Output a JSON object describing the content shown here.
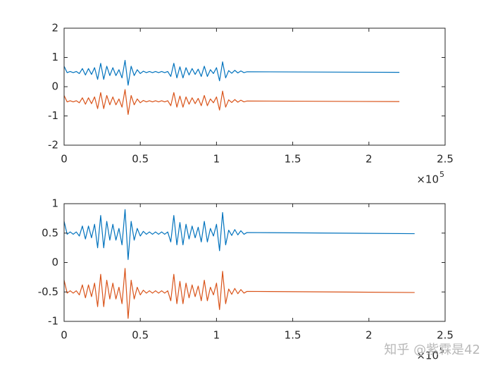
{
  "chart_data": [
    {
      "type": "line",
      "xlim": [
        0,
        2.5
      ],
      "ylim": [
        -2,
        2
      ],
      "xticks": [
        0,
        0.5,
        1,
        1.5,
        2,
        2.5
      ],
      "yticks": [
        -2,
        -1,
        0,
        1,
        2
      ],
      "x_scale_label": "×10",
      "x_scale_exponent": "5",
      "x": [
        0,
        0.02,
        0.04,
        0.06,
        0.08,
        0.1,
        0.12,
        0.14,
        0.16,
        0.18,
        0.2,
        0.22,
        0.24,
        0.26,
        0.28,
        0.3,
        0.32,
        0.34,
        0.36,
        0.38,
        0.4,
        0.42,
        0.44,
        0.46,
        0.48,
        0.5,
        0.52,
        0.54,
        0.56,
        0.58,
        0.6,
        0.62,
        0.64,
        0.66,
        0.68,
        0.7,
        0.72,
        0.74,
        0.76,
        0.78,
        0.8,
        0.82,
        0.84,
        0.86,
        0.88,
        0.9,
        0.92,
        0.94,
        0.96,
        0.98,
        1,
        1.02,
        1.04,
        1.06,
        1.08,
        1.1,
        1.12,
        1.14,
        1.16,
        1.18,
        1.2,
        2.2
      ],
      "series": [
        {
          "color": "#0072bd",
          "values": [
            0.7,
            0.48,
            0.52,
            0.48,
            0.52,
            0.45,
            0.62,
            0.4,
            0.62,
            0.42,
            0.65,
            0.25,
            0.8,
            0.25,
            0.7,
            0.38,
            0.65,
            0.38,
            0.58,
            0.3,
            0.9,
            0.05,
            0.7,
            0.38,
            0.58,
            0.45,
            0.53,
            0.48,
            0.52,
            0.48,
            0.52,
            0.48,
            0.52,
            0.48,
            0.52,
            0.35,
            0.8,
            0.3,
            0.68,
            0.3,
            0.65,
            0.4,
            0.62,
            0.42,
            0.6,
            0.35,
            0.7,
            0.35,
            0.58,
            0.45,
            0.65,
            0.2,
            0.85,
            0.3,
            0.55,
            0.46,
            0.56,
            0.47,
            0.54,
            0.48,
            0.51,
            0.49
          ]
        },
        {
          "color": "#d95319",
          "values": [
            -0.3,
            -0.52,
            -0.48,
            -0.52,
            -0.48,
            -0.55,
            -0.38,
            -0.6,
            -0.38,
            -0.58,
            -0.35,
            -0.75,
            -0.2,
            -0.75,
            -0.3,
            -0.62,
            -0.35,
            -0.62,
            -0.42,
            -0.7,
            -0.1,
            -0.95,
            -0.3,
            -0.62,
            -0.42,
            -0.55,
            -0.47,
            -0.52,
            -0.48,
            -0.52,
            -0.48,
            -0.52,
            -0.48,
            -0.52,
            -0.48,
            -0.65,
            -0.2,
            -0.7,
            -0.32,
            -0.7,
            -0.35,
            -0.6,
            -0.38,
            -0.58,
            -0.4,
            -0.65,
            -0.3,
            -0.65,
            -0.42,
            -0.55,
            -0.35,
            -0.8,
            -0.15,
            -0.7,
            -0.45,
            -0.54,
            -0.44,
            -0.53,
            -0.46,
            -0.52,
            -0.49,
            -0.51
          ]
        }
      ]
    },
    {
      "type": "line",
      "xlim": [
        0,
        2.5
      ],
      "ylim": [
        -1,
        1
      ],
      "xticks": [
        0,
        0.5,
        1,
        1.5,
        2,
        2.5
      ],
      "yticks": [
        -1,
        -0.5,
        0,
        0.5,
        1
      ],
      "x_scale_label": "×10",
      "x_scale_exponent": "5",
      "x": [
        0,
        0.02,
        0.04,
        0.06,
        0.08,
        0.1,
        0.12,
        0.14,
        0.16,
        0.18,
        0.2,
        0.22,
        0.24,
        0.26,
        0.28,
        0.3,
        0.32,
        0.34,
        0.36,
        0.38,
        0.4,
        0.42,
        0.44,
        0.46,
        0.48,
        0.5,
        0.52,
        0.54,
        0.56,
        0.58,
        0.6,
        0.62,
        0.64,
        0.66,
        0.68,
        0.7,
        0.72,
        0.74,
        0.76,
        0.78,
        0.8,
        0.82,
        0.84,
        0.86,
        0.88,
        0.9,
        0.92,
        0.94,
        0.96,
        0.98,
        1,
        1.02,
        1.04,
        1.06,
        1.08,
        1.1,
        1.12,
        1.14,
        1.16,
        1.18,
        1.2,
        2.3
      ],
      "series": [
        {
          "color": "#0072bd",
          "values": [
            0.7,
            0.48,
            0.52,
            0.48,
            0.52,
            0.45,
            0.62,
            0.4,
            0.62,
            0.42,
            0.65,
            0.25,
            0.8,
            0.25,
            0.7,
            0.38,
            0.65,
            0.38,
            0.58,
            0.3,
            0.9,
            0.05,
            0.7,
            0.38,
            0.58,
            0.45,
            0.53,
            0.48,
            0.52,
            0.48,
            0.52,
            0.48,
            0.52,
            0.48,
            0.52,
            0.35,
            0.8,
            0.3,
            0.68,
            0.3,
            0.65,
            0.4,
            0.62,
            0.42,
            0.6,
            0.35,
            0.7,
            0.35,
            0.58,
            0.45,
            0.65,
            0.2,
            0.85,
            0.3,
            0.55,
            0.46,
            0.56,
            0.47,
            0.54,
            0.48,
            0.51,
            0.49
          ]
        },
        {
          "color": "#d95319",
          "values": [
            -0.3,
            -0.52,
            -0.48,
            -0.52,
            -0.48,
            -0.55,
            -0.38,
            -0.6,
            -0.38,
            -0.58,
            -0.35,
            -0.75,
            -0.2,
            -0.75,
            -0.3,
            -0.62,
            -0.35,
            -0.62,
            -0.42,
            -0.7,
            -0.1,
            -0.95,
            -0.3,
            -0.62,
            -0.42,
            -0.55,
            -0.47,
            -0.52,
            -0.48,
            -0.52,
            -0.48,
            -0.52,
            -0.48,
            -0.52,
            -0.48,
            -0.65,
            -0.2,
            -0.7,
            -0.32,
            -0.7,
            -0.35,
            -0.6,
            -0.38,
            -0.58,
            -0.4,
            -0.65,
            -0.3,
            -0.65,
            -0.42,
            -0.55,
            -0.35,
            -0.8,
            -0.15,
            -0.7,
            -0.45,
            -0.54,
            -0.44,
            -0.53,
            -0.46,
            -0.52,
            -0.49,
            -0.51
          ]
        }
      ]
    }
  ],
  "watermark": "知乎 @紫霖是42"
}
